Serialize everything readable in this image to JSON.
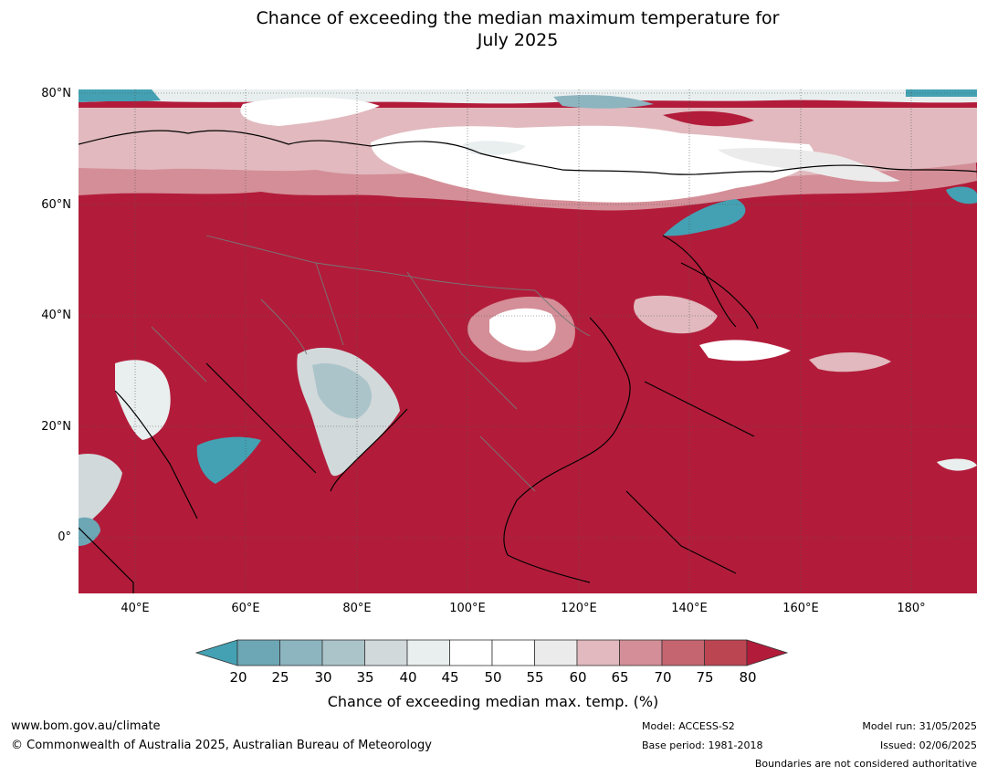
{
  "title": {
    "line1": "Chance of exceeding the median maximum temperature for",
    "line2": "July 2025"
  },
  "map": {
    "lat_labels": [
      "80°N",
      "60°N",
      "40°N",
      "20°N",
      "0°"
    ],
    "lon_labels": [
      "40°E",
      "60°E",
      "80°E",
      "100°E",
      "120°E",
      "140°E",
      "160°E",
      "180°"
    ],
    "base_color": "#b21c3a",
    "coast_color": "#000000",
    "border_color": "#777777"
  },
  "colorbar": {
    "ticks": [
      "20",
      "25",
      "30",
      "35",
      "40",
      "45",
      "50",
      "55",
      "60",
      "65",
      "70",
      "75",
      "80"
    ],
    "colors": [
      "#43a1b3",
      "#6da7b6",
      "#8cb5c0",
      "#abc4ca",
      "#d1d9db",
      "#e9eeef",
      "#ffffff",
      "#ffffff",
      "#ecebeb",
      "#e1b9be",
      "#d48e97",
      "#c56570",
      "#bc4552",
      "#b21c3a"
    ],
    "label": "Chance of exceeding median max. temp. (%)"
  },
  "footer": {
    "url": "www.bom.gov.au/climate",
    "copyright": "© Commonwealth of Australia 2025, Australian Bureau of Meteorology",
    "model": "Model: ACCESS-S2",
    "base_period": "Base period: 1981-2018",
    "model_run": "Model run: 31/05/2025",
    "issued": "Issued: 02/06/2025",
    "disclaimer": "Boundaries are not considered authoritative"
  }
}
